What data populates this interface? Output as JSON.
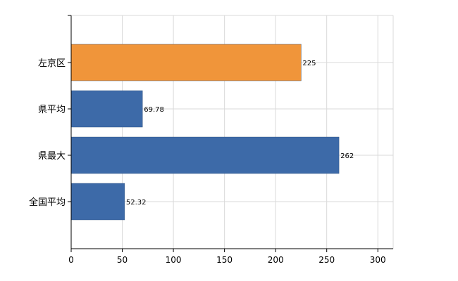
{
  "chart_data": {
    "type": "bar",
    "orientation": "horizontal",
    "categories": [
      "左京区",
      "県平均",
      "県最大",
      "全国平均"
    ],
    "values": [
      225,
      69.78,
      262,
      52.32
    ],
    "data_labels": [
      "225",
      "69.78",
      "262",
      "52.32"
    ],
    "bar_colors": [
      "#f0953a",
      "#3d6aa8",
      "#3d6aa8",
      "#3d6aa8"
    ],
    "xlim": [
      0,
      315
    ],
    "x_ticks": [
      0,
      50,
      100,
      150,
      200,
      250,
      300
    ],
    "x_tick_labels": [
      "0",
      "50",
      "100",
      "150",
      "200",
      "250",
      "300"
    ],
    "grid": true,
    "legend": "none",
    "title": "",
    "xlabel": "",
    "ylabel": ""
  }
}
